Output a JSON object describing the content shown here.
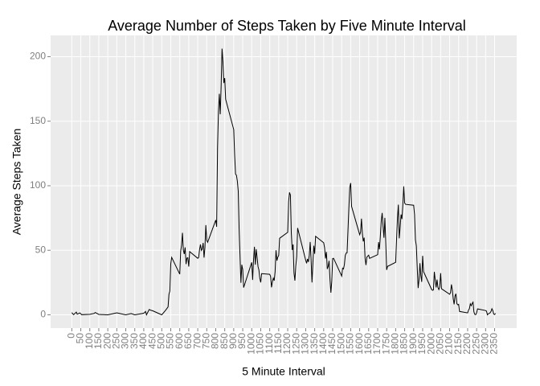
{
  "chart_data": {
    "type": "line",
    "title": "Average Number of Steps Taken by Five Minute Interval",
    "x_label": "5 Minute Interval",
    "y_label": "Average Steps Taken",
    "x": [
      0,
      10,
      25,
      30,
      45,
      55,
      100,
      125,
      130,
      150,
      200,
      250,
      300,
      330,
      350,
      400,
      410,
      415,
      430,
      440,
      450,
      500,
      520,
      535,
      540,
      545,
      550,
      555,
      600,
      605,
      610,
      615,
      620,
      625,
      630,
      635,
      640,
      645,
      650,
      655,
      700,
      705,
      710,
      715,
      720,
      725,
      730,
      735,
      740,
      745,
      750,
      755,
      800,
      805,
      810,
      815,
      820,
      825,
      830,
      835,
      840,
      845,
      850,
      855,
      900,
      905,
      910,
      915,
      920,
      925,
      930,
      935,
      940,
      945,
      950,
      955,
      1000,
      1005,
      1010,
      1015,
      1020,
      1025,
      1030,
      1035,
      1040,
      1045,
      1050,
      1055,
      1100,
      1105,
      1110,
      1115,
      1120,
      1125,
      1130,
      1135,
      1140,
      1145,
      1150,
      1155,
      1200,
      1205,
      1210,
      1215,
      1220,
      1225,
      1230,
      1235,
      1240,
      1245,
      1250,
      1255,
      1300,
      1305,
      1310,
      1315,
      1320,
      1325,
      1330,
      1335,
      1340,
      1345,
      1350,
      1355,
      1400,
      1405,
      1410,
      1415,
      1420,
      1425,
      1430,
      1435,
      1440,
      1445,
      1450,
      1455,
      1500,
      1505,
      1510,
      1515,
      1520,
      1525,
      1530,
      1535,
      1540,
      1545,
      1550,
      1555,
      1600,
      1605,
      1610,
      1615,
      1620,
      1625,
      1630,
      1635,
      1640,
      1645,
      1650,
      1655,
      1700,
      1705,
      1710,
      1715,
      1720,
      1725,
      1730,
      1735,
      1740,
      1745,
      1750,
      1755,
      1800,
      1805,
      1810,
      1815,
      1820,
      1825,
      1830,
      1835,
      1840,
      1845,
      1850,
      1855,
      1900,
      1905,
      1910,
      1915,
      1920,
      1925,
      1930,
      1935,
      1940,
      1945,
      1950,
      1955,
      2000,
      2005,
      2010,
      2015,
      2020,
      2025,
      2030,
      2035,
      2040,
      2045,
      2050,
      2055,
      2100,
      2105,
      2110,
      2115,
      2120,
      2125,
      2130,
      2135,
      2140,
      2145,
      2150,
      2155,
      2200,
      2205,
      2210,
      2215,
      2220,
      2225,
      2230,
      2235,
      2240,
      2245,
      2250,
      2255,
      2300,
      2305,
      2310,
      2315,
      2320,
      2325,
      2330,
      2335,
      2340,
      2345,
      2350,
      2355
    ],
    "series": [
      {
        "name": "steps",
        "color": "#000000",
        "values": [
          1.7,
          0.1,
          2.1,
          0.5,
          1.5,
          0.1,
          0.4,
          1.1,
          1.8,
          0.3,
          0,
          1.5,
          0,
          1,
          0,
          1.2,
          2.6,
          0,
          4.1,
          3.5,
          3.1,
          0,
          3.3,
          6.1,
          16,
          18.3,
          39.5,
          44.5,
          31.5,
          49.3,
          53.8,
          63.5,
          50,
          47.1,
          52.2,
          39.3,
          44,
          44.2,
          37.4,
          49,
          43.8,
          44.4,
          50.5,
          54.5,
          49.9,
          51,
          55.7,
          44.3,
          52.3,
          69.5,
          57.8,
          56.2,
          73.4,
          68.2,
          129.4,
          157.5,
          171.2,
          155.4,
          177.3,
          206.2,
          195.9,
          179.6,
          183.4,
          167,
          143.5,
          124,
          109.1,
          108.1,
          103.7,
          96,
          66.2,
          45.2,
          24.8,
          38.8,
          35,
          21.1,
          40.6,
          27,
          42.4,
          52.7,
          38.9,
          50.8,
          44.3,
          37.4,
          34.7,
          28.3,
          25.1,
          31.9,
          31.4,
          29.7,
          21.3,
          25.5,
          28.4,
          26.5,
          33.4,
          50,
          42,
          44.6,
          46,
          59.3,
          63.9,
          87.7,
          94.8,
          92.8,
          63.4,
          50.2,
          54.5,
          32.4,
          26.5,
          37.7,
          45.1,
          67.3,
          42.3,
          39.9,
          43.3,
          41,
          46.2,
          56.4,
          42.8,
          25.1,
          40,
          53.5,
          47.3,
          60.8,
          55.8,
          52,
          43.6,
          48.7,
          35.5,
          37.5,
          41.8,
          27.5,
          17.1,
          26.1,
          43.6,
          43.8,
          30,
          36.1,
          35.5,
          38.8,
          46,
          47.8,
          48.1,
          65.3,
          82.9,
          98.7,
          102.1,
          84,
          62.1,
          64.1,
          74.5,
          63.2,
          56.9,
          59.8,
          43.9,
          38.6,
          44.7,
          45.5,
          46.2,
          43.7,
          46.6,
          56.3,
          50.7,
          61.2,
          72.7,
          78.9,
          68.9,
          59.7,
          75.1,
          56.5,
          34.8,
          37.5,
          40.7,
          58,
          74.7,
          85.3,
          59.3,
          67.8,
          77.7,
          74.2,
          85.3,
          99.5,
          86.6,
          85.6,
          84.9,
          77.8,
          58,
          53.4,
          36.3,
          20.7,
          27.4,
          40,
          30.2,
          25.5,
          45.7,
          33.5,
          19.6,
          19,
          19.3,
          33.3,
          26.8,
          21.2,
          27.3,
          21.3,
          19.5,
          21.3,
          32.3,
          20.2,
          15.9,
          17.2,
          23.5,
          19.2,
          12.5,
          8.1,
          14.7,
          16.3,
          8.7,
          7.8,
          8.1,
          2.6,
          1.5,
          3.7,
          4.8,
          8.5,
          7.1,
          8.7,
          9.8,
          2.2,
          0.3,
          0.1,
          1.6,
          4.6,
          3.3,
          2.8,
          0,
          0.8,
          1,
          1.6,
          2.6,
          4.7,
          3.3,
          0.6,
          0.2,
          1.1
        ]
      }
    ],
    "xlim": [
      -117.75,
      2472.75
    ],
    "ylim": [
      -10.3,
      216.5
    ],
    "xticks": [
      0,
      50,
      100,
      150,
      200,
      250,
      300,
      350,
      400,
      450,
      500,
      550,
      600,
      650,
      700,
      750,
      800,
      850,
      900,
      950,
      1000,
      1050,
      1100,
      1150,
      1200,
      1250,
      1300,
      1350,
      1400,
      1450,
      1500,
      1550,
      1600,
      1650,
      1700,
      1750,
      1800,
      1850,
      1900,
      1950,
      2000,
      2050,
      2100,
      2150,
      2200,
      2250,
      2300,
      2350
    ],
    "yticks": [
      0,
      50,
      100,
      150,
      200
    ],
    "grid": true
  }
}
